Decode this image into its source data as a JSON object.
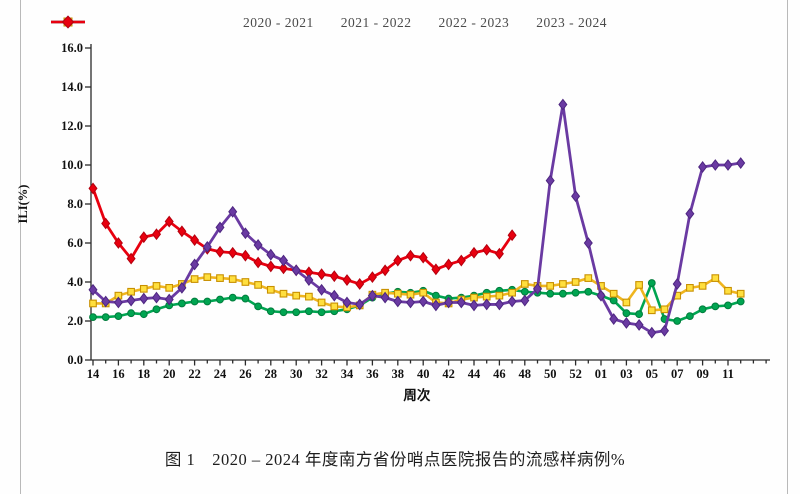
{
  "figure": {
    "caption": "图 1　2020 – 2024 年度南方省份哨点医院报告的流感样病例%"
  },
  "chart_data": {
    "type": "line",
    "title": "图 1 2020–2024 年度南方省份哨点医院报告的流感样病例%",
    "xlabel": "周次",
    "ylabel": "ILI(%)",
    "ylim": [
      0,
      16
    ],
    "y_tick_labels": [
      "0.0",
      "2.0",
      "4.0",
      "6.0",
      "8.0",
      "10.0",
      "12.0",
      "14.0",
      "16.0"
    ],
    "x": [
      "14",
      "15",
      "16",
      "17",
      "18",
      "19",
      "20",
      "21",
      "22",
      "23",
      "24",
      "25",
      "26",
      "27",
      "28",
      "29",
      "30",
      "31",
      "32",
      "33",
      "34",
      "35",
      "36",
      "37",
      "38",
      "39",
      "40",
      "41",
      "42",
      "43",
      "44",
      "45",
      "46",
      "47",
      "48",
      "49",
      "50",
      "51",
      "52",
      "01",
      "02",
      "03",
      "04",
      "05",
      "06",
      "07",
      "08",
      "09",
      "10",
      "11",
      "12",
      "13"
    ],
    "x_tick_labels": [
      "14",
      "16",
      "18",
      "20",
      "22",
      "24",
      "26",
      "28",
      "30",
      "32",
      "34",
      "36",
      "38",
      "40",
      "42",
      "44",
      "46",
      "48",
      "50",
      "52",
      "01",
      "03",
      "05",
      "07",
      "09",
      "11"
    ],
    "grid": false,
    "legend_position": "top",
    "series": [
      {
        "name": "2020 - 2021",
        "marker": "circle",
        "color": "#00A551",
        "fill": "#00A551",
        "edge": "#007C3C",
        "values": [
          2.2,
          2.2,
          2.25,
          2.4,
          2.35,
          2.6,
          2.8,
          2.9,
          3.0,
          3.0,
          3.1,
          3.2,
          3.15,
          2.75,
          2.5,
          2.45,
          2.45,
          2.5,
          2.45,
          2.5,
          2.6,
          2.8,
          3.2,
          3.4,
          3.5,
          3.45,
          3.55,
          3.3,
          3.15,
          3.2,
          3.3,
          3.45,
          3.55,
          3.6,
          3.5,
          3.45,
          3.4,
          3.4,
          3.45,
          3.5,
          3.3,
          3.05,
          2.4,
          2.35,
          3.95,
          2.1,
          2.0,
          2.25,
          2.6,
          2.75,
          2.8,
          3.0
        ]
      },
      {
        "name": "2021 - 2022",
        "marker": "square",
        "color": "#EFB51F",
        "fill": "#FFDF3E",
        "edge": "#C89000",
        "values": [
          2.9,
          2.9,
          3.3,
          3.5,
          3.65,
          3.8,
          3.7,
          3.9,
          4.15,
          4.25,
          4.2,
          4.15,
          4.0,
          3.85,
          3.6,
          3.4,
          3.3,
          3.25,
          2.95,
          2.75,
          2.7,
          2.8,
          3.35,
          3.45,
          3.4,
          3.35,
          3.45,
          2.95,
          2.9,
          3.1,
          3.2,
          3.25,
          3.3,
          3.45,
          3.9,
          3.8,
          3.8,
          3.9,
          4.0,
          4.2,
          3.8,
          3.4,
          2.95,
          3.85,
          2.55,
          2.6,
          3.3,
          3.7,
          3.8,
          4.2,
          3.55,
          3.4
        ]
      },
      {
        "name": "2022 - 2023",
        "marker": "diamond",
        "color": "#6A3AA2",
        "fill": "#6A3AA2",
        "edge": "#4D2680",
        "values": [
          3.6,
          3.0,
          2.95,
          3.05,
          3.15,
          3.2,
          3.1,
          3.7,
          4.9,
          5.8,
          6.8,
          7.6,
          6.5,
          5.9,
          5.4,
          5.1,
          4.6,
          4.1,
          3.6,
          3.3,
          2.95,
          2.85,
          3.3,
          3.2,
          3.0,
          2.95,
          3.0,
          2.8,
          2.95,
          2.95,
          2.8,
          2.85,
          2.85,
          3.0,
          3.05,
          3.65,
          9.2,
          13.1,
          8.4,
          6.0,
          3.3,
          2.1,
          1.9,
          1.8,
          1.4,
          1.5,
          3.9,
          7.5,
          9.9,
          10.0,
          10.0,
          10.1
        ]
      },
      {
        "name": "2023 - 2024",
        "marker": "diamond",
        "color": "#E8000F",
        "fill": "#E8000F",
        "edge": "#B3000E",
        "values": [
          8.8,
          7.0,
          6.0,
          5.2,
          6.3,
          6.45,
          7.1,
          6.6,
          6.15,
          5.7,
          5.55,
          5.5,
          5.35,
          5.0,
          4.8,
          4.7,
          4.6,
          4.5,
          4.4,
          4.3,
          4.1,
          3.9,
          4.25,
          4.6,
          5.1,
          5.35,
          5.25,
          4.65,
          4.9,
          5.1,
          5.5,
          5.65,
          5.45,
          6.4
        ]
      }
    ],
    "draw_order": [
      0,
      1,
      3,
      2
    ],
    "axis_color": "#2b2b2b",
    "tick_label_color": "#111111"
  }
}
